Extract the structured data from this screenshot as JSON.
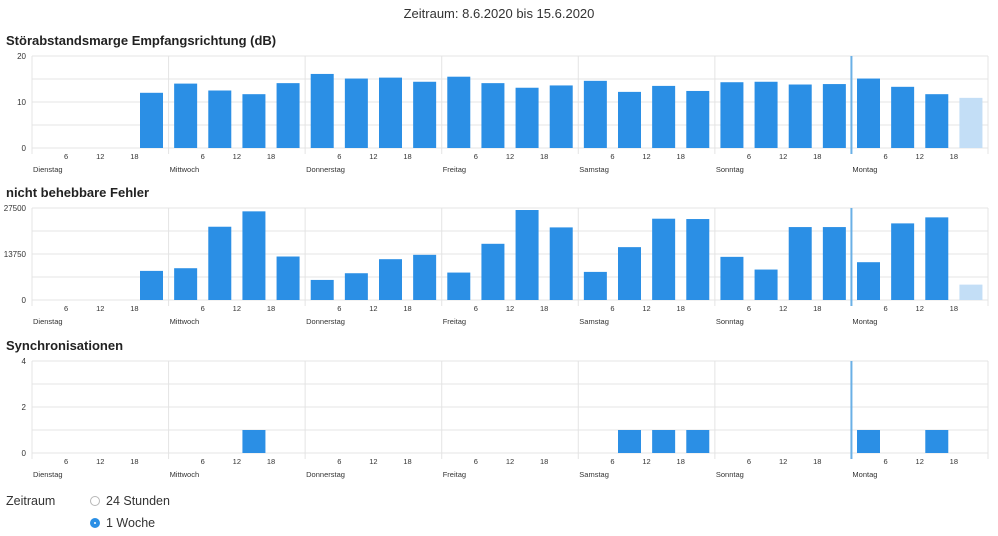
{
  "header": {
    "period_title": "Zeitraum: 8.6.2020 bis 15.6.2020"
  },
  "colors": {
    "bar": "#2b8fe5",
    "bar_partial": "#c3def6",
    "grid": "#e4e4e4",
    "now_line": "#6ab0e6"
  },
  "x_axis": {
    "day_labels": [
      "Dienstag",
      "Mittwoch",
      "Donnerstag",
      "Freitag",
      "Samstag",
      "Sonntag",
      "Montag"
    ],
    "hour_labels": [
      "6",
      "12",
      "18"
    ]
  },
  "chart_data": [
    {
      "type": "bar",
      "title": "Störabstandsmarge Empfangsrichtung (dB)",
      "ylim": [
        0,
        20
      ],
      "yticks": [
        "0",
        "10",
        "20"
      ],
      "bars": [
        {
          "day": 0,
          "hour": 18,
          "value": 12
        },
        {
          "day": 1,
          "hour": 0,
          "value": 14
        },
        {
          "day": 1,
          "hour": 6,
          "value": 12.5
        },
        {
          "day": 1,
          "hour": 12,
          "value": 11.7
        },
        {
          "day": 1,
          "hour": 18,
          "value": 14.1
        },
        {
          "day": 2,
          "hour": 0,
          "value": 16.1
        },
        {
          "day": 2,
          "hour": 6,
          "value": 15.1
        },
        {
          "day": 2,
          "hour": 12,
          "value": 15.3
        },
        {
          "day": 2,
          "hour": 18,
          "value": 14.4
        },
        {
          "day": 3,
          "hour": 0,
          "value": 15.5
        },
        {
          "day": 3,
          "hour": 6,
          "value": 14.1
        },
        {
          "day": 3,
          "hour": 12,
          "value": 13.1
        },
        {
          "day": 3,
          "hour": 18,
          "value": 13.6
        },
        {
          "day": 4,
          "hour": 0,
          "value": 14.6
        },
        {
          "day": 4,
          "hour": 6,
          "value": 12.2
        },
        {
          "day": 4,
          "hour": 12,
          "value": 13.5
        },
        {
          "day": 4,
          "hour": 18,
          "value": 12.4
        },
        {
          "day": 5,
          "hour": 0,
          "value": 14.3
        },
        {
          "day": 5,
          "hour": 6,
          "value": 14.4
        },
        {
          "day": 5,
          "hour": 12,
          "value": 13.8
        },
        {
          "day": 5,
          "hour": 18,
          "value": 13.9
        },
        {
          "day": 6,
          "hour": 0,
          "value": 15.1
        },
        {
          "day": 6,
          "hour": 6,
          "value": 13.3
        },
        {
          "day": 6,
          "hour": 12,
          "value": 11.7
        },
        {
          "day": 6,
          "hour": 18,
          "value": 10.9,
          "partial": true
        }
      ]
    },
    {
      "type": "bar",
      "title": "nicht behebbare Fehler",
      "ylim": [
        0,
        27500
      ],
      "yticks": [
        "0",
        "13750",
        "27500"
      ],
      "bars": [
        {
          "day": 0,
          "hour": 18,
          "value": 8700
        },
        {
          "day": 1,
          "hour": 0,
          "value": 9500
        },
        {
          "day": 1,
          "hour": 6,
          "value": 21900
        },
        {
          "day": 1,
          "hour": 12,
          "value": 26500
        },
        {
          "day": 1,
          "hour": 18,
          "value": 13000
        },
        {
          "day": 2,
          "hour": 0,
          "value": 6000
        },
        {
          "day": 2,
          "hour": 6,
          "value": 8000
        },
        {
          "day": 2,
          "hour": 12,
          "value": 12200
        },
        {
          "day": 2,
          "hour": 18,
          "value": 13500
        },
        {
          "day": 3,
          "hour": 0,
          "value": 8200
        },
        {
          "day": 3,
          "hour": 6,
          "value": 16800
        },
        {
          "day": 3,
          "hour": 12,
          "value": 26900
        },
        {
          "day": 3,
          "hour": 18,
          "value": 21700
        },
        {
          "day": 4,
          "hour": 0,
          "value": 8400
        },
        {
          "day": 4,
          "hour": 6,
          "value": 15800
        },
        {
          "day": 4,
          "hour": 12,
          "value": 24300
        },
        {
          "day": 4,
          "hour": 18,
          "value": 24200
        },
        {
          "day": 5,
          "hour": 0,
          "value": 12900
        },
        {
          "day": 5,
          "hour": 6,
          "value": 9100
        },
        {
          "day": 5,
          "hour": 12,
          "value": 21800
        },
        {
          "day": 5,
          "hour": 18,
          "value": 21800
        },
        {
          "day": 6,
          "hour": 0,
          "value": 11300
        },
        {
          "day": 6,
          "hour": 6,
          "value": 22900
        },
        {
          "day": 6,
          "hour": 12,
          "value": 24700
        },
        {
          "day": 6,
          "hour": 18,
          "value": 4600,
          "partial": true
        }
      ]
    },
    {
      "type": "bar",
      "title": "Synchronisationen",
      "ylim": [
        0,
        4
      ],
      "yticks": [
        "0",
        "2",
        "4"
      ],
      "bars": [
        {
          "day": 1,
          "hour": 12,
          "value": 1
        },
        {
          "day": 4,
          "hour": 6,
          "value": 1
        },
        {
          "day": 4,
          "hour": 12,
          "value": 1
        },
        {
          "day": 4,
          "hour": 18,
          "value": 1
        },
        {
          "day": 6,
          "hour": 0,
          "value": 1
        },
        {
          "day": 6,
          "hour": 12,
          "value": 1
        }
      ]
    }
  ],
  "controls": {
    "label": "Zeitraum",
    "options": [
      {
        "label": "24 Stunden",
        "checked": false
      },
      {
        "label": "1 Woche",
        "checked": true
      }
    ]
  }
}
